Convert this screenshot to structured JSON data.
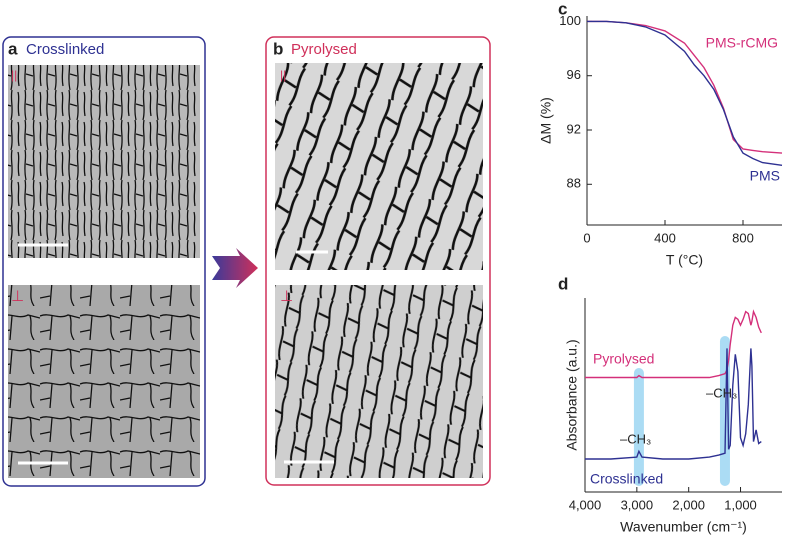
{
  "panels": [
    {
      "label": "a",
      "title": "Crosslinked",
      "orientations": [
        "||",
        "⊥"
      ]
    },
    {
      "label": "b",
      "title": "Pyrolysed",
      "orientations": [
        "||",
        "⊥"
      ]
    }
  ],
  "chart_data": [
    {
      "type": "line",
      "label": "c",
      "xlabel": "T (°C)",
      "ylabel": "ΔM (%)",
      "x": [
        0,
        100,
        200,
        300,
        400,
        500,
        550,
        600,
        650,
        700,
        750,
        800,
        850,
        900,
        1000
      ],
      "xlim": [
        0,
        1000
      ],
      "xticks": [
        0,
        400,
        800
      ],
      "ylim": [
        85,
        100.4
      ],
      "yticks": [
        88,
        92,
        96,
        100
      ],
      "series": [
        {
          "name": "PMS-rCMG",
          "color": "#d4307a",
          "values": [
            100,
            100,
            99.9,
            99.7,
            99.3,
            98.4,
            97.5,
            96.6,
            95.3,
            93.6,
            91.3,
            90.6,
            90.5,
            90.4,
            90.3
          ]
        },
        {
          "name": "PMS",
          "color": "#2e3192",
          "values": [
            100,
            100,
            99.9,
            99.6,
            99.0,
            97.8,
            96.8,
            96.0,
            95.0,
            93.5,
            91.5,
            90.3,
            89.9,
            89.6,
            89.4
          ]
        }
      ]
    },
    {
      "type": "line",
      "label": "d",
      "xlabel": "Wavenumber (cm⁻¹)",
      "ylabel": "Absorbance (a.u.)",
      "x": [
        4000,
        3500,
        3000,
        2960,
        2900,
        2500,
        2000,
        1600,
        1420,
        1300,
        1260,
        1230,
        1200,
        1150,
        1100,
        1050,
        1000,
        950,
        900,
        850,
        800,
        780,
        750,
        700,
        650,
        600
      ],
      "xlim": [
        4000,
        200
      ],
      "xticks": [
        {
          "value": 4000,
          "label": "4,000"
        },
        {
          "value": 3000,
          "label": "3,000"
        },
        {
          "value": 2000,
          "label": "2,000"
        },
        {
          "value": 1000,
          "label": "1,000"
        }
      ],
      "ylim": [
        0,
        10
      ],
      "highlights": [
        2960,
        1300
      ],
      "annotations": [
        "–CH₃",
        "–CH₃"
      ],
      "series": [
        {
          "name": "Pyrolysed",
          "color": "#d4307a",
          "values": [
            5.9,
            5.9,
            5.9,
            6.0,
            5.9,
            5.9,
            5.9,
            5.9,
            6.0,
            6.1,
            6.3,
            6.8,
            7.6,
            8.6,
            9.0,
            8.9,
            8.6,
            8.9,
            9.3,
            9.2,
            8.6,
            8.8,
            9.3,
            9.0,
            8.5,
            8.2
          ]
        },
        {
          "name": "Crosslinked",
          "color": "#2e3192",
          "values": [
            1.7,
            1.7,
            1.8,
            2.1,
            1.8,
            1.7,
            1.7,
            1.8,
            1.9,
            2.0,
            7.4,
            2.2,
            2.4,
            5.5,
            7.1,
            6.2,
            2.8,
            2.4,
            3.0,
            4.5,
            7.4,
            6.5,
            2.6,
            3.2,
            2.5,
            2.6
          ]
        }
      ]
    }
  ]
}
